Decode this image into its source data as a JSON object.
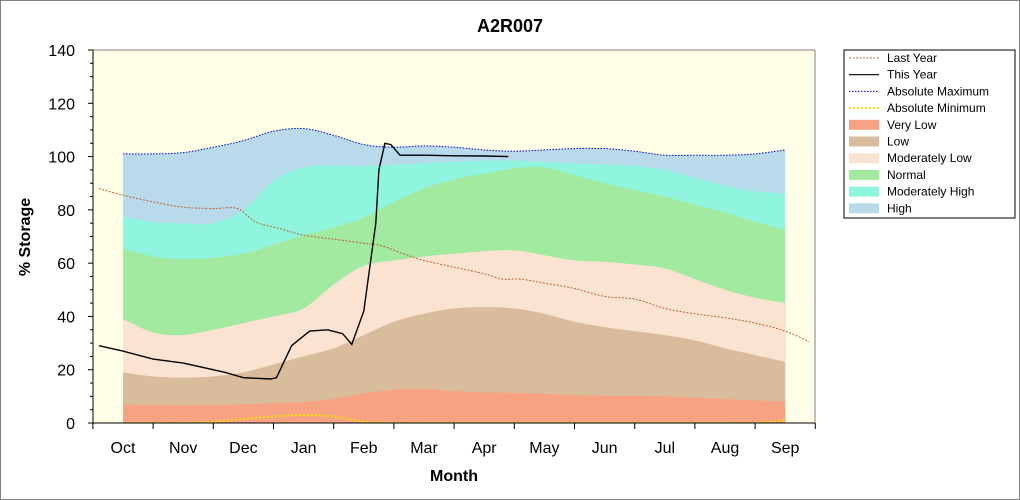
{
  "chart_data": {
    "type": "area",
    "title": "A2R007",
    "xlabel": "Month",
    "ylabel": "% Storage",
    "ylim": [
      0,
      140
    ],
    "yticks": [
      0,
      20,
      40,
      60,
      80,
      100,
      120,
      140
    ],
    "categories": [
      "Oct",
      "Nov",
      "Dec",
      "Jan",
      "Feb",
      "Mar",
      "Apr",
      "May",
      "Jun",
      "Jul",
      "Aug",
      "Sep"
    ],
    "legend_position": "right",
    "colors": {
      "plot_bg": "#FFFFE8",
      "last_year": "#C06030",
      "this_year": "#000000",
      "abs_max": "#0000CC",
      "abs_min": "#F0E000",
      "very_low": "#F7A383",
      "low": "#D9BC9C",
      "moderately_low": "#FBE3D1",
      "normal": "#A2EAA0",
      "moderately_high": "#8FF5DF",
      "high": "#B8DAEA"
    },
    "legend": [
      {
        "key": "last_year",
        "label": "Last Year",
        "style": "dash-line"
      },
      {
        "key": "this_year",
        "label": "This Year",
        "style": "line"
      },
      {
        "key": "abs_max",
        "label": "Absolute Maximum",
        "style": "dot-line"
      },
      {
        "key": "abs_min",
        "label": "Absolute Minimum",
        "style": "dot-line-thick"
      },
      {
        "key": "very_low",
        "label": "Very Low",
        "style": "box"
      },
      {
        "key": "low",
        "label": "Low",
        "style": "box"
      },
      {
        "key": "moderately_low",
        "label": "Moderately Low",
        "style": "box"
      },
      {
        "key": "normal",
        "label": "Normal",
        "style": "box"
      },
      {
        "key": "moderately_high",
        "label": "Moderately High",
        "style": "box"
      },
      {
        "key": "high",
        "label": "High",
        "style": "box"
      }
    ],
    "band_x": [
      1.0,
      1.5,
      2.0,
      2.5,
      3.0,
      3.5,
      4.0,
      4.5,
      5.0,
      5.5,
      6.0,
      6.5,
      7.0,
      7.5,
      8.0,
      8.5,
      9.0,
      9.5,
      10.0,
      10.5,
      11.0,
      11.5,
      12.0
    ],
    "bands": [
      {
        "key": "very_low",
        "upper": [
          7,
          6.7,
          6.6,
          6.7,
          7,
          7.5,
          8,
          9,
          11,
          12.5,
          12.8,
          12,
          11.5,
          11.3,
          11,
          10.5,
          10.3,
          10.2,
          10,
          9.5,
          9,
          8.5,
          8
        ]
      },
      {
        "key": "low",
        "upper": [
          19,
          17.5,
          17,
          17.5,
          19,
          22,
          25,
          28,
          33,
          38,
          41,
          43,
          43.5,
          43,
          41,
          38,
          36,
          34.5,
          33,
          31,
          28,
          25.5,
          23
        ]
      },
      {
        "key": "moderately_low",
        "upper": [
          39,
          34,
          33,
          35,
          37.5,
          40,
          43,
          52,
          59,
          61,
          62.5,
          63.5,
          64.5,
          64.8,
          63,
          61,
          60.5,
          59.5,
          58,
          54,
          50,
          47,
          45
        ]
      },
      {
        "key": "normal",
        "upper": [
          65.5,
          62.5,
          61.5,
          62,
          63.5,
          67,
          70.5,
          73.5,
          77,
          83,
          88,
          91.5,
          93.5,
          95.5,
          96,
          93,
          90,
          87.5,
          85,
          82,
          79,
          75.5,
          72.5
        ]
      },
      {
        "key": "moderately_high",
        "upper": [
          77.5,
          75.5,
          75,
          75,
          80,
          91,
          96,
          96.5,
          96.5,
          97,
          97.5,
          98,
          98.5,
          98.5,
          98,
          97.5,
          97,
          96.5,
          95,
          92,
          89,
          87,
          86
        ]
      },
      {
        "key": "high",
        "upper": [
          101,
          101,
          101.5,
          103.5,
          106,
          109.5,
          110.5,
          108,
          104.5,
          103.5,
          104,
          103.5,
          102.5,
          102,
          102.5,
          103,
          103,
          102,
          100.5,
          100.5,
          100.5,
          101,
          102.5
        ]
      }
    ],
    "series": [
      {
        "key": "last_year",
        "name": "Last Year",
        "x": [
          0.6,
          1.0,
          1.5,
          2.0,
          2.5,
          2.9,
          3.2,
          3.6,
          4.0,
          4.5,
          5.0,
          5.3,
          5.6,
          6.0,
          6.5,
          7.0,
          7.3,
          7.6,
          8.0,
          8.5,
          9.0,
          9.5,
          10.0,
          10.5,
          11.0,
          11.5,
          12.0,
          12.4
        ],
        "y": [
          88,
          85.5,
          83,
          81,
          80.5,
          80.5,
          75.5,
          73,
          70.5,
          69,
          67.5,
          66.5,
          64,
          61,
          58.5,
          56,
          54,
          54,
          52.5,
          50.5,
          47.5,
          46.5,
          43,
          41,
          39.5,
          37.5,
          34.5,
          30.5
        ]
      },
      {
        "key": "this_year",
        "name": "This Year",
        "x": [
          0.6,
          1.0,
          1.5,
          2.0,
          2.3,
          2.7,
          3.0,
          3.45,
          3.55,
          3.8,
          4.1,
          4.4,
          4.65,
          4.8,
          5.0,
          5.2,
          5.25,
          5.35,
          5.45,
          5.6,
          6.0,
          6.5,
          7.0,
          7.4
        ],
        "y": [
          29,
          27,
          24,
          22.5,
          21,
          19,
          17,
          16.5,
          17,
          29,
          34.5,
          35,
          33.5,
          29.5,
          42,
          75,
          95,
          105,
          104.5,
          100.5,
          100.5,
          100.3,
          100.2,
          100
        ]
      },
      {
        "key": "abs_max",
        "name": "Absolute Maximum",
        "x": [
          1.0,
          1.5,
          2.0,
          2.5,
          3.0,
          3.5,
          4.0,
          4.5,
          5.0,
          5.5,
          6.0,
          6.5,
          7.0,
          7.5,
          8.0,
          8.5,
          9.0,
          9.5,
          10.0,
          10.5,
          11.0,
          11.5,
          12.0
        ],
        "y": [
          101,
          101,
          101.5,
          103.5,
          106,
          109.5,
          110.5,
          108,
          104.5,
          103.5,
          104,
          103.5,
          102.5,
          102,
          102.5,
          103,
          103,
          102,
          100.5,
          100.5,
          100.5,
          101,
          102.5
        ]
      },
      {
        "key": "abs_min",
        "name": "Absolute Minimum",
        "x": [
          1.0,
          1.5,
          2.0,
          2.5,
          3.0,
          3.5,
          4.0,
          4.5,
          5.0,
          5.5,
          6.0,
          6.5,
          7.0,
          7.5,
          8.0,
          8.5,
          9.0,
          9.5,
          10.0,
          10.5,
          11.0,
          11.5,
          12.0
        ],
        "y": [
          0,
          0,
          0,
          0.5,
          1.5,
          2.5,
          3,
          2.5,
          0.5,
          0,
          0,
          0,
          0,
          0,
          0,
          0,
          0,
          0,
          0,
          0,
          0,
          0,
          1
        ]
      }
    ]
  }
}
